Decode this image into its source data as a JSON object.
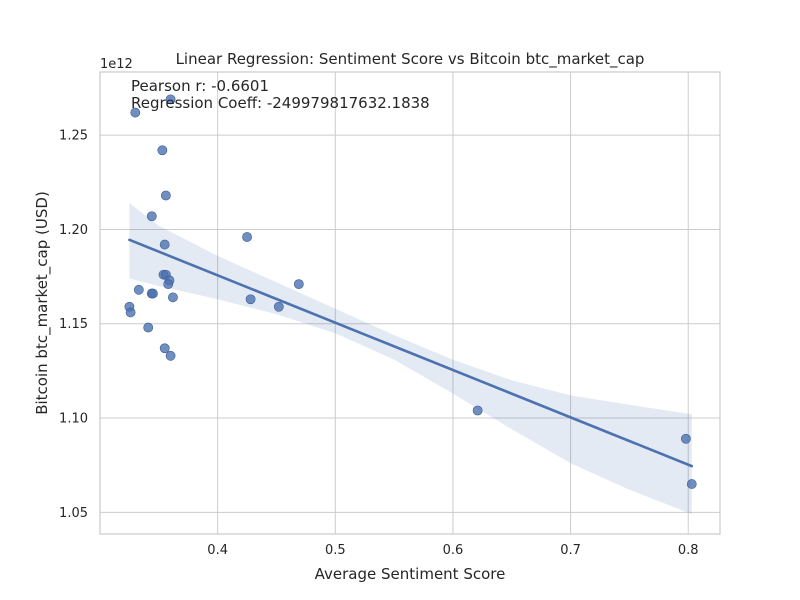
{
  "chart_data": {
    "type": "scatter",
    "title": "Linear Regression: Sentiment Score vs Bitcoin btc_market_cap",
    "xlabel": "Average Sentiment Score",
    "ylabel": "Bitcoin btc_market_cap (USD)",
    "y_offset_label": "1e12",
    "xlim": [
      0.3,
      0.827
    ],
    "ylim": [
      1.0385,
      1.2835
    ],
    "x_ticks": [
      0.4,
      0.5,
      0.6,
      0.7,
      0.8
    ],
    "x_tick_labels": [
      "0.4",
      "0.5",
      "0.6",
      "0.7",
      "0.8"
    ],
    "y_ticks": [
      1.05,
      1.1,
      1.15,
      1.2,
      1.25
    ],
    "y_tick_labels": [
      "1.05",
      "1.10",
      "1.15",
      "1.20",
      "1.25"
    ],
    "grid": true,
    "annotations": [
      "Pearson r: -0.6601",
      "Regression Coeff: -249979817632.1838"
    ],
    "points": [
      {
        "x": 0.33,
        "y": 1.262
      },
      {
        "x": 0.36,
        "y": 1.269
      },
      {
        "x": 0.353,
        "y": 1.242
      },
      {
        "x": 0.356,
        "y": 1.218
      },
      {
        "x": 0.344,
        "y": 1.207
      },
      {
        "x": 0.355,
        "y": 1.192
      },
      {
        "x": 0.425,
        "y": 1.196
      },
      {
        "x": 0.354,
        "y": 1.176
      },
      {
        "x": 0.356,
        "y": 1.176
      },
      {
        "x": 0.359,
        "y": 1.173
      },
      {
        "x": 0.358,
        "y": 1.171
      },
      {
        "x": 0.469,
        "y": 1.171
      },
      {
        "x": 0.333,
        "y": 1.168
      },
      {
        "x": 0.344,
        "y": 1.166
      },
      {
        "x": 0.345,
        "y": 1.166
      },
      {
        "x": 0.362,
        "y": 1.164
      },
      {
        "x": 0.428,
        "y": 1.163
      },
      {
        "x": 0.452,
        "y": 1.159
      },
      {
        "x": 0.325,
        "y": 1.159
      },
      {
        "x": 0.326,
        "y": 1.156
      },
      {
        "x": 0.341,
        "y": 1.148
      },
      {
        "x": 0.355,
        "y": 1.137
      },
      {
        "x": 0.36,
        "y": 1.133
      },
      {
        "x": 0.621,
        "y": 1.104
      },
      {
        "x": 0.798,
        "y": 1.089
      },
      {
        "x": 0.803,
        "y": 1.065
      }
    ],
    "regression": {
      "x": [
        0.325,
        0.803
      ],
      "y": [
        1.1945,
        1.0745
      ],
      "ci_upper": [
        [
          0.325,
          1.214
        ],
        [
          0.35,
          1.202
        ],
        [
          0.4,
          1.186
        ],
        [
          0.45,
          1.172
        ],
        [
          0.5,
          1.158
        ],
        [
          0.55,
          1.144
        ],
        [
          0.6,
          1.131
        ],
        [
          0.65,
          1.12
        ],
        [
          0.7,
          1.112
        ],
        [
          0.75,
          1.107
        ],
        [
          0.803,
          1.102
        ]
      ],
      "ci_lower": [
        [
          0.325,
          1.174
        ],
        [
          0.35,
          1.17
        ],
        [
          0.4,
          1.163
        ],
        [
          0.45,
          1.155
        ],
        [
          0.5,
          1.145
        ],
        [
          0.55,
          1.131
        ],
        [
          0.6,
          1.113
        ],
        [
          0.65,
          1.094
        ],
        [
          0.7,
          1.076
        ],
        [
          0.75,
          1.062
        ],
        [
          0.803,
          1.049
        ]
      ]
    },
    "colors": {
      "points": "#4c72b0",
      "line": "#4c72b0",
      "band": "#4c72b0"
    }
  }
}
